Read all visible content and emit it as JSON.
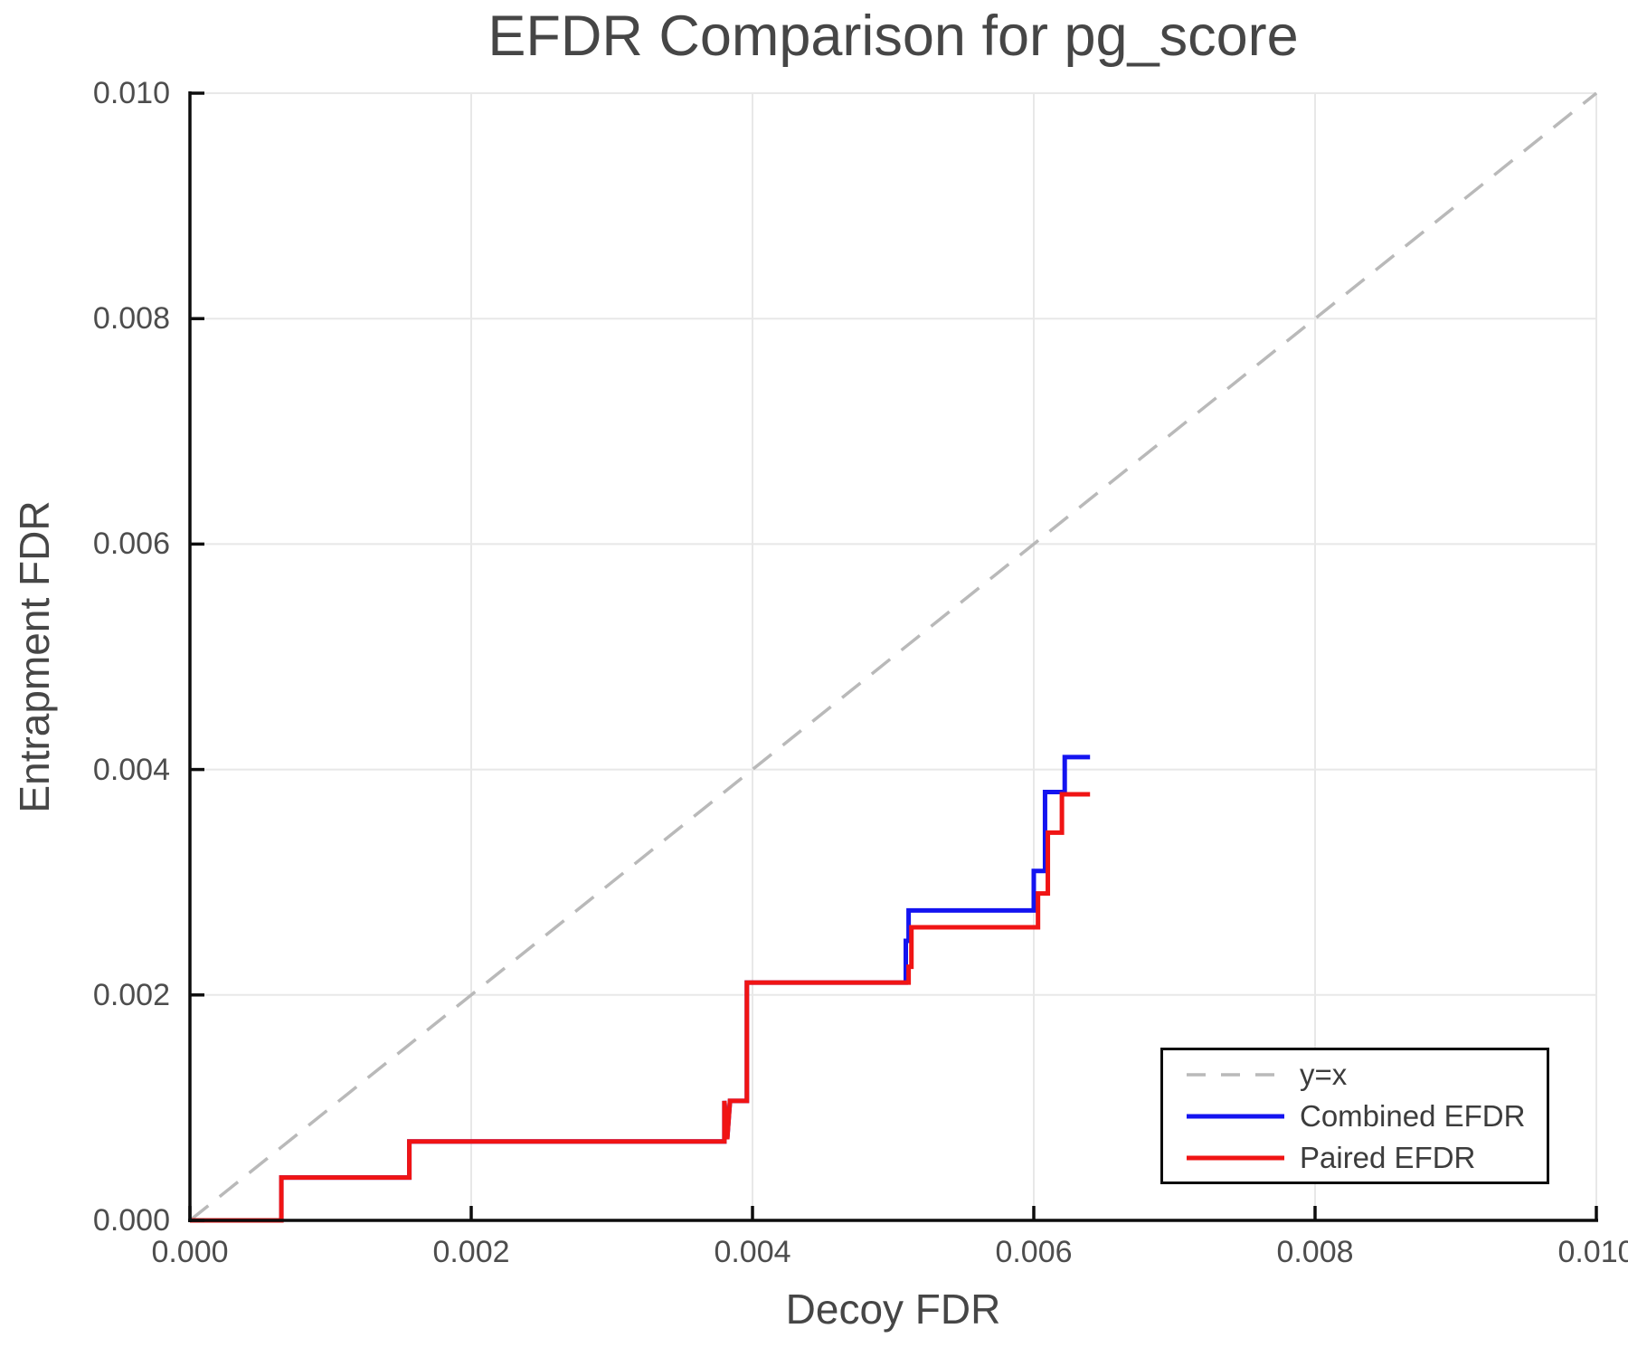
{
  "title": "EFDR Comparison for pg_score",
  "axes": {
    "xlabel": "Decoy FDR",
    "ylabel": "Entrapment FDR",
    "x_tick_labels": [
      "0.000",
      "0.002",
      "0.004",
      "0.006",
      "0.008",
      "0.010"
    ],
    "y_tick_labels": [
      "0.000",
      "0.002",
      "0.004",
      "0.006",
      "0.008",
      "0.010"
    ]
  },
  "legend": {
    "items": [
      {
        "label": "y=x",
        "style": "dashed",
        "color": "#b9b9b9"
      },
      {
        "label": "Combined EFDR",
        "style": "solid",
        "color": "#1414f0"
      },
      {
        "label": "Paired EFDR",
        "style": "solid",
        "color": "#f01414"
      }
    ]
  },
  "colors": {
    "grid": "#e8e8e8",
    "axis": "#0d0d0d",
    "reference_line": "#b9b9b9",
    "combined_efdr": "#1414f0",
    "paired_efdr": "#f01414"
  },
  "chart_data": {
    "type": "line",
    "title": "EFDR Comparison for pg_score",
    "xlabel": "Decoy FDR",
    "ylabel": "Entrapment FDR",
    "xlim": [
      0.0,
      0.01
    ],
    "ylim": [
      0.0,
      0.01
    ],
    "x_ticks": [
      0.0,
      0.002,
      0.004,
      0.006,
      0.008,
      0.01
    ],
    "y_ticks": [
      0.0,
      0.002,
      0.004,
      0.006,
      0.008,
      0.01
    ],
    "grid": true,
    "legend_position": "lower right",
    "series": [
      {
        "name": "y=x",
        "style": "dashed",
        "color": "#b9b9b9",
        "points": [
          [
            0.0,
            0.0
          ],
          [
            0.01,
            0.01
          ]
        ]
      },
      {
        "name": "Combined EFDR",
        "style": "solid",
        "color": "#1414f0",
        "points": [
          [
            0.0,
            0.0
          ],
          [
            0.00065,
            0.0
          ],
          [
            0.00065,
            0.00038
          ],
          [
            0.00156,
            0.00038
          ],
          [
            0.00156,
            0.0007
          ],
          [
            0.0038,
            0.0007
          ],
          [
            0.0038,
            0.00106
          ],
          [
            0.00382,
            0.00072
          ],
          [
            0.00384,
            0.00106
          ],
          [
            0.00396,
            0.00106
          ],
          [
            0.00396,
            0.00211
          ],
          [
            0.00509,
            0.00211
          ],
          [
            0.00509,
            0.00248
          ],
          [
            0.00511,
            0.00248
          ],
          [
            0.00511,
            0.00275
          ],
          [
            0.006,
            0.00275
          ],
          [
            0.006,
            0.0031
          ],
          [
            0.00608,
            0.0031
          ],
          [
            0.00608,
            0.0038
          ],
          [
            0.00622,
            0.0038
          ],
          [
            0.00622,
            0.00411
          ],
          [
            0.0064,
            0.00411
          ]
        ]
      },
      {
        "name": "Paired EFDR",
        "style": "solid",
        "color": "#f01414",
        "points": [
          [
            0.0,
            0.0
          ],
          [
            0.00065,
            0.0
          ],
          [
            0.00065,
            0.00038
          ],
          [
            0.00156,
            0.00038
          ],
          [
            0.00156,
            0.0007
          ],
          [
            0.0038,
            0.0007
          ],
          [
            0.0038,
            0.00106
          ],
          [
            0.00382,
            0.00072
          ],
          [
            0.00384,
            0.00106
          ],
          [
            0.00396,
            0.00106
          ],
          [
            0.00396,
            0.00211
          ],
          [
            0.00511,
            0.00211
          ],
          [
            0.00511,
            0.00225
          ],
          [
            0.00513,
            0.00225
          ],
          [
            0.00513,
            0.0026
          ],
          [
            0.00603,
            0.0026
          ],
          [
            0.00603,
            0.0029
          ],
          [
            0.0061,
            0.0029
          ],
          [
            0.0061,
            0.00344
          ],
          [
            0.0062,
            0.00344
          ],
          [
            0.0062,
            0.00378
          ],
          [
            0.0064,
            0.00378
          ]
        ]
      }
    ]
  }
}
